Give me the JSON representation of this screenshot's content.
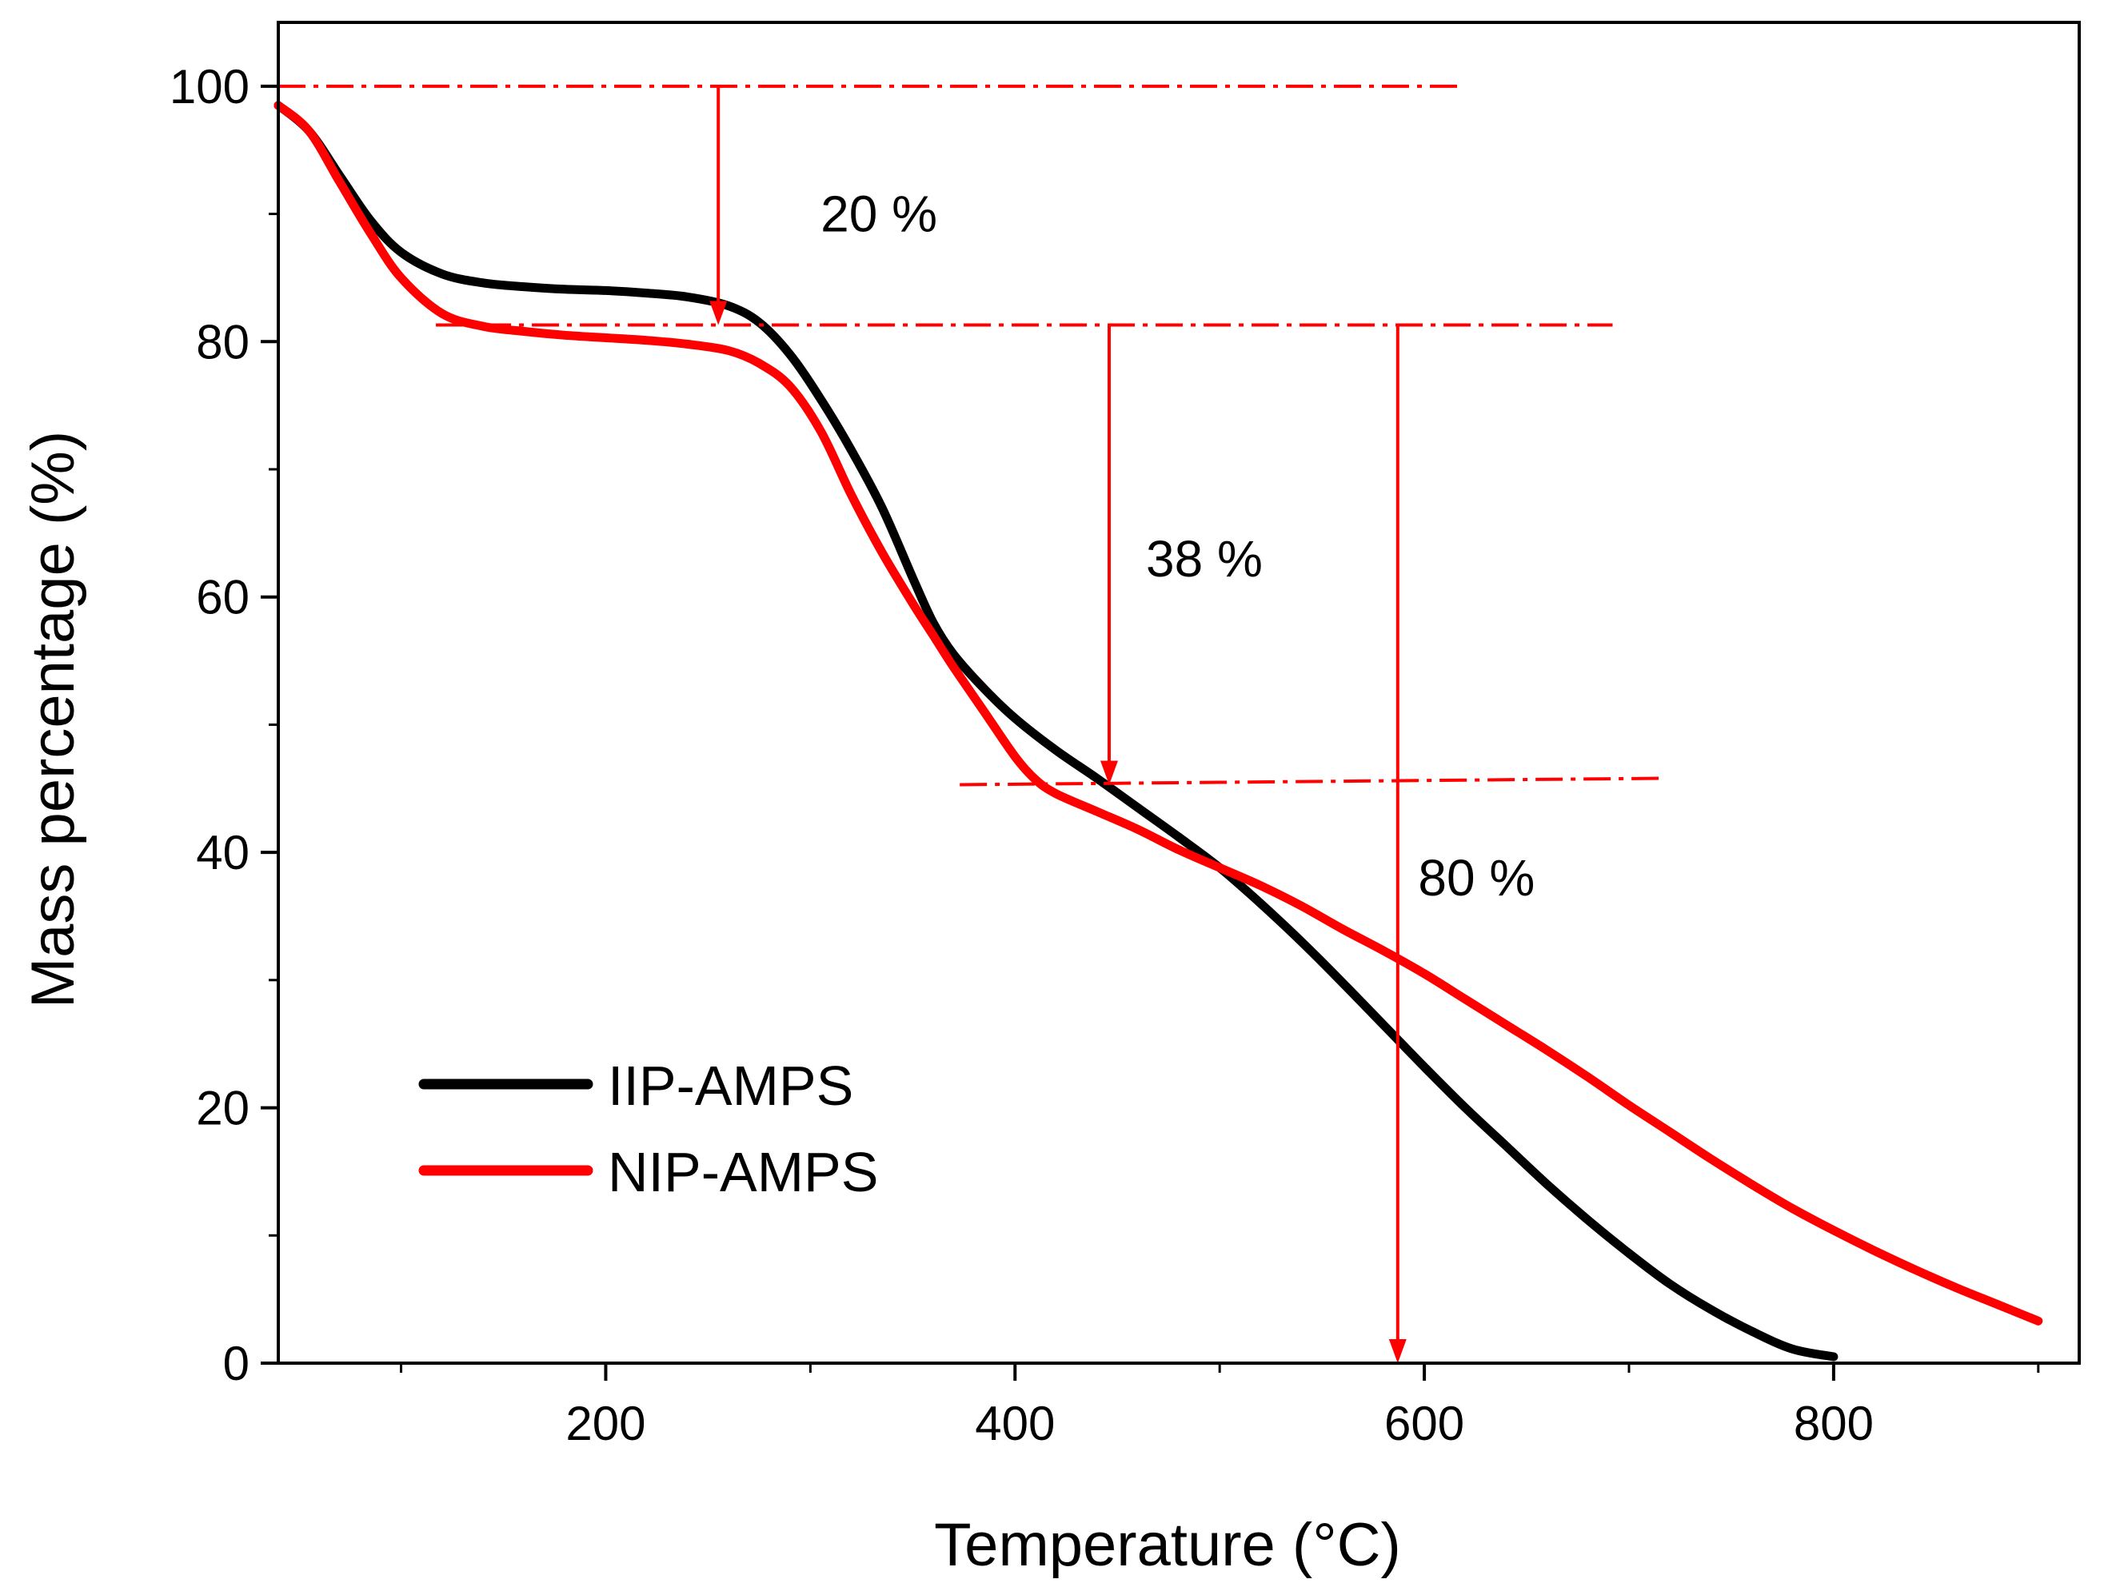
{
  "chart_data": {
    "type": "line",
    "title": "",
    "xlabel": "Temperature (°C)",
    "ylabel": "Mass percentage (%)",
    "xlim": [
      40,
      920
    ],
    "ylim": [
      0,
      105
    ],
    "x_major_ticks": [
      200,
      400,
      600,
      800
    ],
    "x_minor_ticks": [
      100,
      300,
      500,
      700,
      900
    ],
    "y_major_ticks": [
      0,
      20,
      40,
      60,
      80,
      100
    ],
    "y_minor_ticks": [
      10,
      30,
      50,
      70,
      90
    ],
    "x_tick_labels": [
      "200",
      "400",
      "600",
      "800"
    ],
    "y_tick_labels": [
      "0",
      "20",
      "40",
      "60",
      "80",
      "100"
    ],
    "grid": false,
    "legend_position": "bottom-left",
    "series": [
      {
        "name": "IIP-AMPS",
        "color": "#000000",
        "x": [
          40,
          55,
          70,
          85,
          100,
          120,
          140,
          160,
          180,
          200,
          220,
          240,
          260,
          275,
          290,
          305,
          320,
          335,
          350,
          360,
          370,
          385,
          400,
          420,
          440,
          460,
          480,
          500,
          520,
          540,
          560,
          580,
          600,
          620,
          640,
          660,
          680,
          700,
          720,
          740,
          760,
          780,
          800
        ],
        "y": [
          98.5,
          96.5,
          93.0,
          89.5,
          87.0,
          85.3,
          84.6,
          84.3,
          84.1,
          84.0,
          83.8,
          83.5,
          82.8,
          81.5,
          79.0,
          75.5,
          71.5,
          67.0,
          61.5,
          58.0,
          55.5,
          52.8,
          50.5,
          48.0,
          45.8,
          43.5,
          41.2,
          38.8,
          36.0,
          33.0,
          29.8,
          26.5,
          23.2,
          20.0,
          17.0,
          14.0,
          11.2,
          8.6,
          6.2,
          4.2,
          2.5,
          1.1,
          0.5
        ]
      },
      {
        "name": "NIP-AMPS",
        "color": "#ff0000",
        "x": [
          40,
          55,
          70,
          85,
          100,
          120,
          140,
          160,
          180,
          200,
          220,
          240,
          260,
          275,
          290,
          305,
          320,
          335,
          350,
          360,
          370,
          385,
          400,
          410,
          420,
          440,
          460,
          480,
          500,
          520,
          540,
          560,
          580,
          600,
          620,
          640,
          660,
          680,
          700,
          720,
          740,
          760,
          780,
          800,
          820,
          840,
          860,
          880,
          900
        ],
        "y": [
          98.5,
          96.5,
          92.5,
          88.5,
          85.0,
          82.2,
          81.2,
          80.8,
          80.5,
          80.3,
          80.1,
          79.8,
          79.3,
          78.3,
          76.5,
          73.0,
          68.0,
          63.5,
          59.5,
          57.0,
          54.5,
          51.0,
          47.5,
          45.7,
          44.6,
          43.2,
          41.8,
          40.2,
          38.8,
          37.4,
          35.8,
          34.0,
          32.3,
          30.5,
          28.5,
          26.5,
          24.5,
          22.4,
          20.2,
          18.1,
          16.0,
          14.0,
          12.1,
          10.4,
          8.8,
          7.3,
          5.9,
          4.6,
          3.3
        ]
      }
    ],
    "reference_lines": [
      {
        "name": "ref-line-100",
        "x": [
          40,
          616
        ],
        "y": [
          100,
          100
        ],
        "style": "dash-dot",
        "color": "#ff0000"
      },
      {
        "name": "ref-line-81",
        "x": [
          117,
          692
        ],
        "y": [
          81.3,
          81.3
        ],
        "style": "dash-dot",
        "color": "#ff0000"
      },
      {
        "name": "ref-line-45",
        "x": [
          373,
          715
        ],
        "y": [
          45.3,
          45.8
        ],
        "style": "dash-dot",
        "color": "#ff0000"
      }
    ],
    "arrows": [
      {
        "name": "arrow-20-percent",
        "x": 255,
        "y_from": 100,
        "y_to": 81.3,
        "color": "#ff0000"
      },
      {
        "name": "arrow-38-percent",
        "x": 446,
        "y_from": 81.3,
        "y_to": 45.3,
        "color": "#ff0000"
      },
      {
        "name": "arrow-80-percent",
        "x": 587,
        "y_from": 81.3,
        "y_to": 0,
        "color": "#ff0000"
      }
    ],
    "annotations": [
      {
        "name": "annot-20-percent",
        "text": "20 %",
        "x": 305,
        "y": 90
      },
      {
        "name": "annot-38-percent",
        "text": "38 %",
        "x": 464,
        "y": 63
      },
      {
        "name": "annot-80-percent",
        "text": "80 %",
        "x": 597,
        "y": 38
      }
    ]
  },
  "legend": {
    "items": [
      {
        "label": "IIP-AMPS",
        "color": "#000000"
      },
      {
        "label": "NIP-AMPS",
        "color": "#ff0000"
      }
    ]
  }
}
